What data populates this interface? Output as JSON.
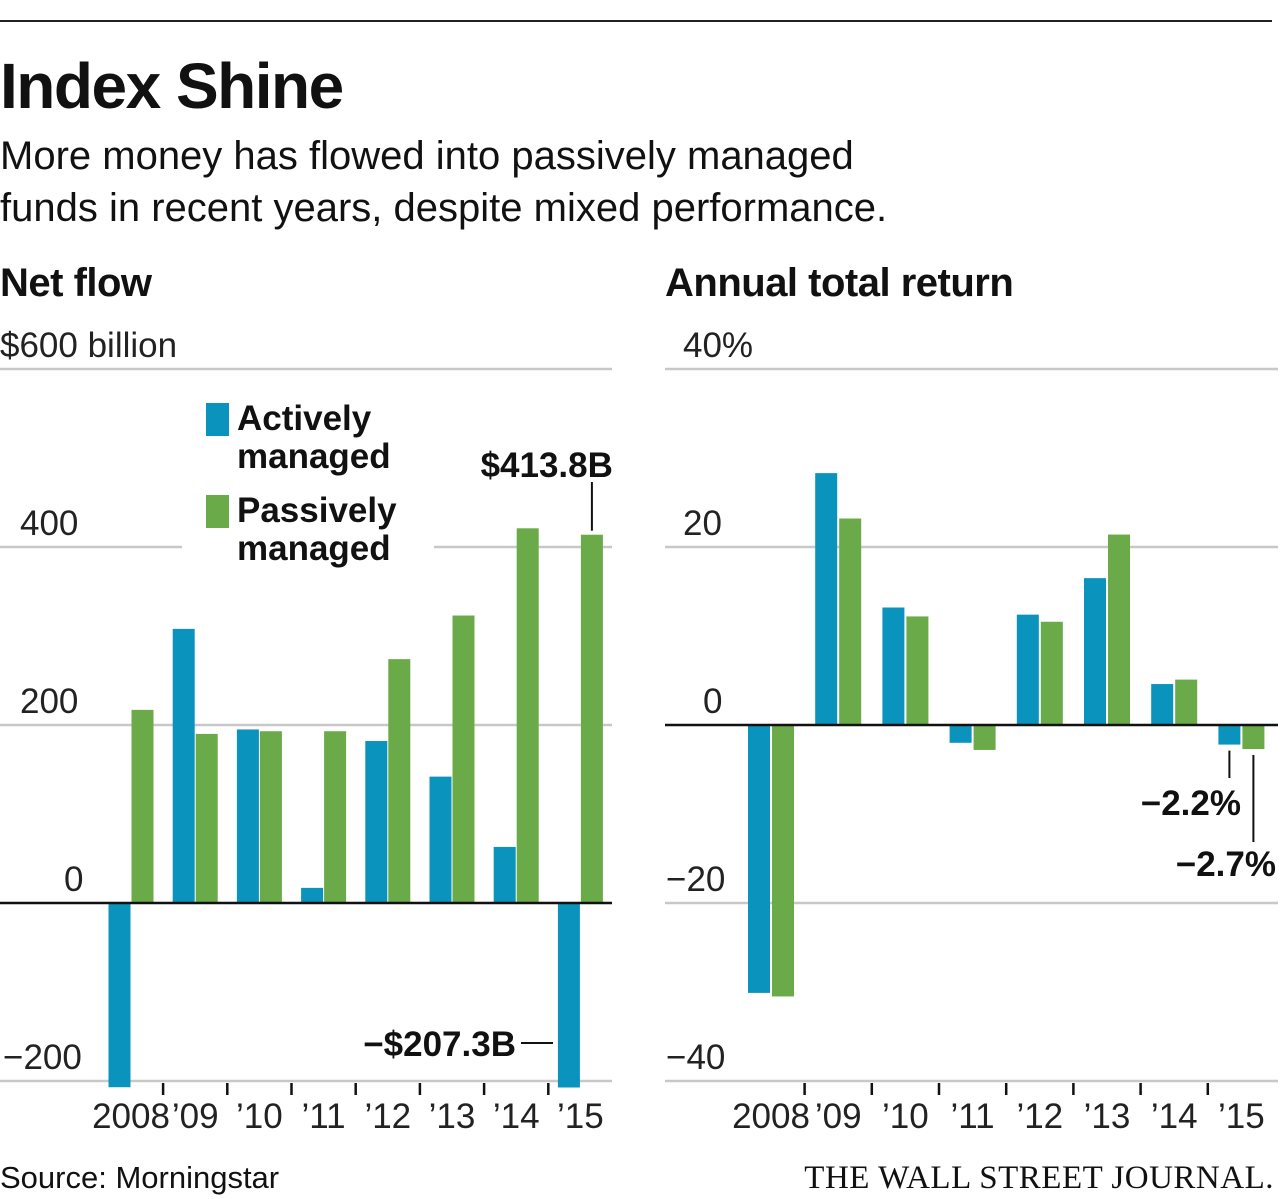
{
  "header": {
    "title": "Index Shine",
    "subtitle_line1": "More money has flowed into passively managed",
    "subtitle_line2": "funds in recent years, despite mixed performance."
  },
  "colors": {
    "active": "#0a93bc",
    "passive": "#6aaa48",
    "grid": "#c8c8c8",
    "axis": "#111111"
  },
  "legend": [
    {
      "name": "Actively managed",
      "color": "#0a93bc"
    },
    {
      "name": "Passively managed",
      "color": "#6aaa48"
    }
  ],
  "chart_data": [
    {
      "type": "bar",
      "title": "Net flow",
      "categories": [
        "2008",
        "’09",
        "’10",
        "’11",
        "’12",
        "’13",
        "’14",
        "’15"
      ],
      "series": [
        {
          "name": "Actively managed",
          "values": [
            -207,
            308,
            195,
            17,
            182,
            142,
            63,
            -207.3
          ]
        },
        {
          "name": "Passively managed",
          "values": [
            217,
            190,
            193,
            193,
            274,
            323,
            421,
            413.8
          ]
        }
      ],
      "ylim": [
        -200,
        600
      ],
      "yticks": [
        {
          "value": 600,
          "label": "$600 billion"
        },
        {
          "value": 400,
          "label": "400"
        },
        {
          "value": 200,
          "label": "200"
        },
        {
          "value": 0,
          "label": "0"
        },
        {
          "value": -200,
          "label": "−200"
        }
      ],
      "annotations": [
        {
          "label": "$413.8B",
          "series": 1,
          "index": 7
        },
        {
          "label": "−$207.3B",
          "series": 0,
          "index": 7
        }
      ],
      "legend_position": "top-left",
      "grid": true
    },
    {
      "type": "bar",
      "title": "Annual total return",
      "categories": [
        "2008",
        "’09",
        "’10",
        "’11",
        "’12",
        "’13",
        "’14",
        "’15"
      ],
      "series": [
        {
          "name": "Actively managed",
          "values": [
            -30.1,
            28.3,
            13.2,
            -2.0,
            12.4,
            16.5,
            4.6,
            -2.2
          ]
        },
        {
          "name": "Passively managed",
          "values": [
            -30.5,
            23.2,
            12.2,
            -2.8,
            11.6,
            21.4,
            5.1,
            -2.7
          ]
        }
      ],
      "ylim": [
        -40,
        40
      ],
      "yticks": [
        {
          "value": 40,
          "label": "40%"
        },
        {
          "value": 20,
          "label": "20"
        },
        {
          "value": 0,
          "label": "0"
        },
        {
          "value": -20,
          "label": "−20"
        },
        {
          "value": -40,
          "label": "−40"
        }
      ],
      "annotations": [
        {
          "label": "−2.2%",
          "series": 0,
          "index": 7
        },
        {
          "label": "−2.7%",
          "series": 1,
          "index": 7
        }
      ],
      "grid": true
    }
  ],
  "footer": {
    "source": "Source: Morningstar",
    "brand": "THE WALL STREET JOURNAL."
  }
}
